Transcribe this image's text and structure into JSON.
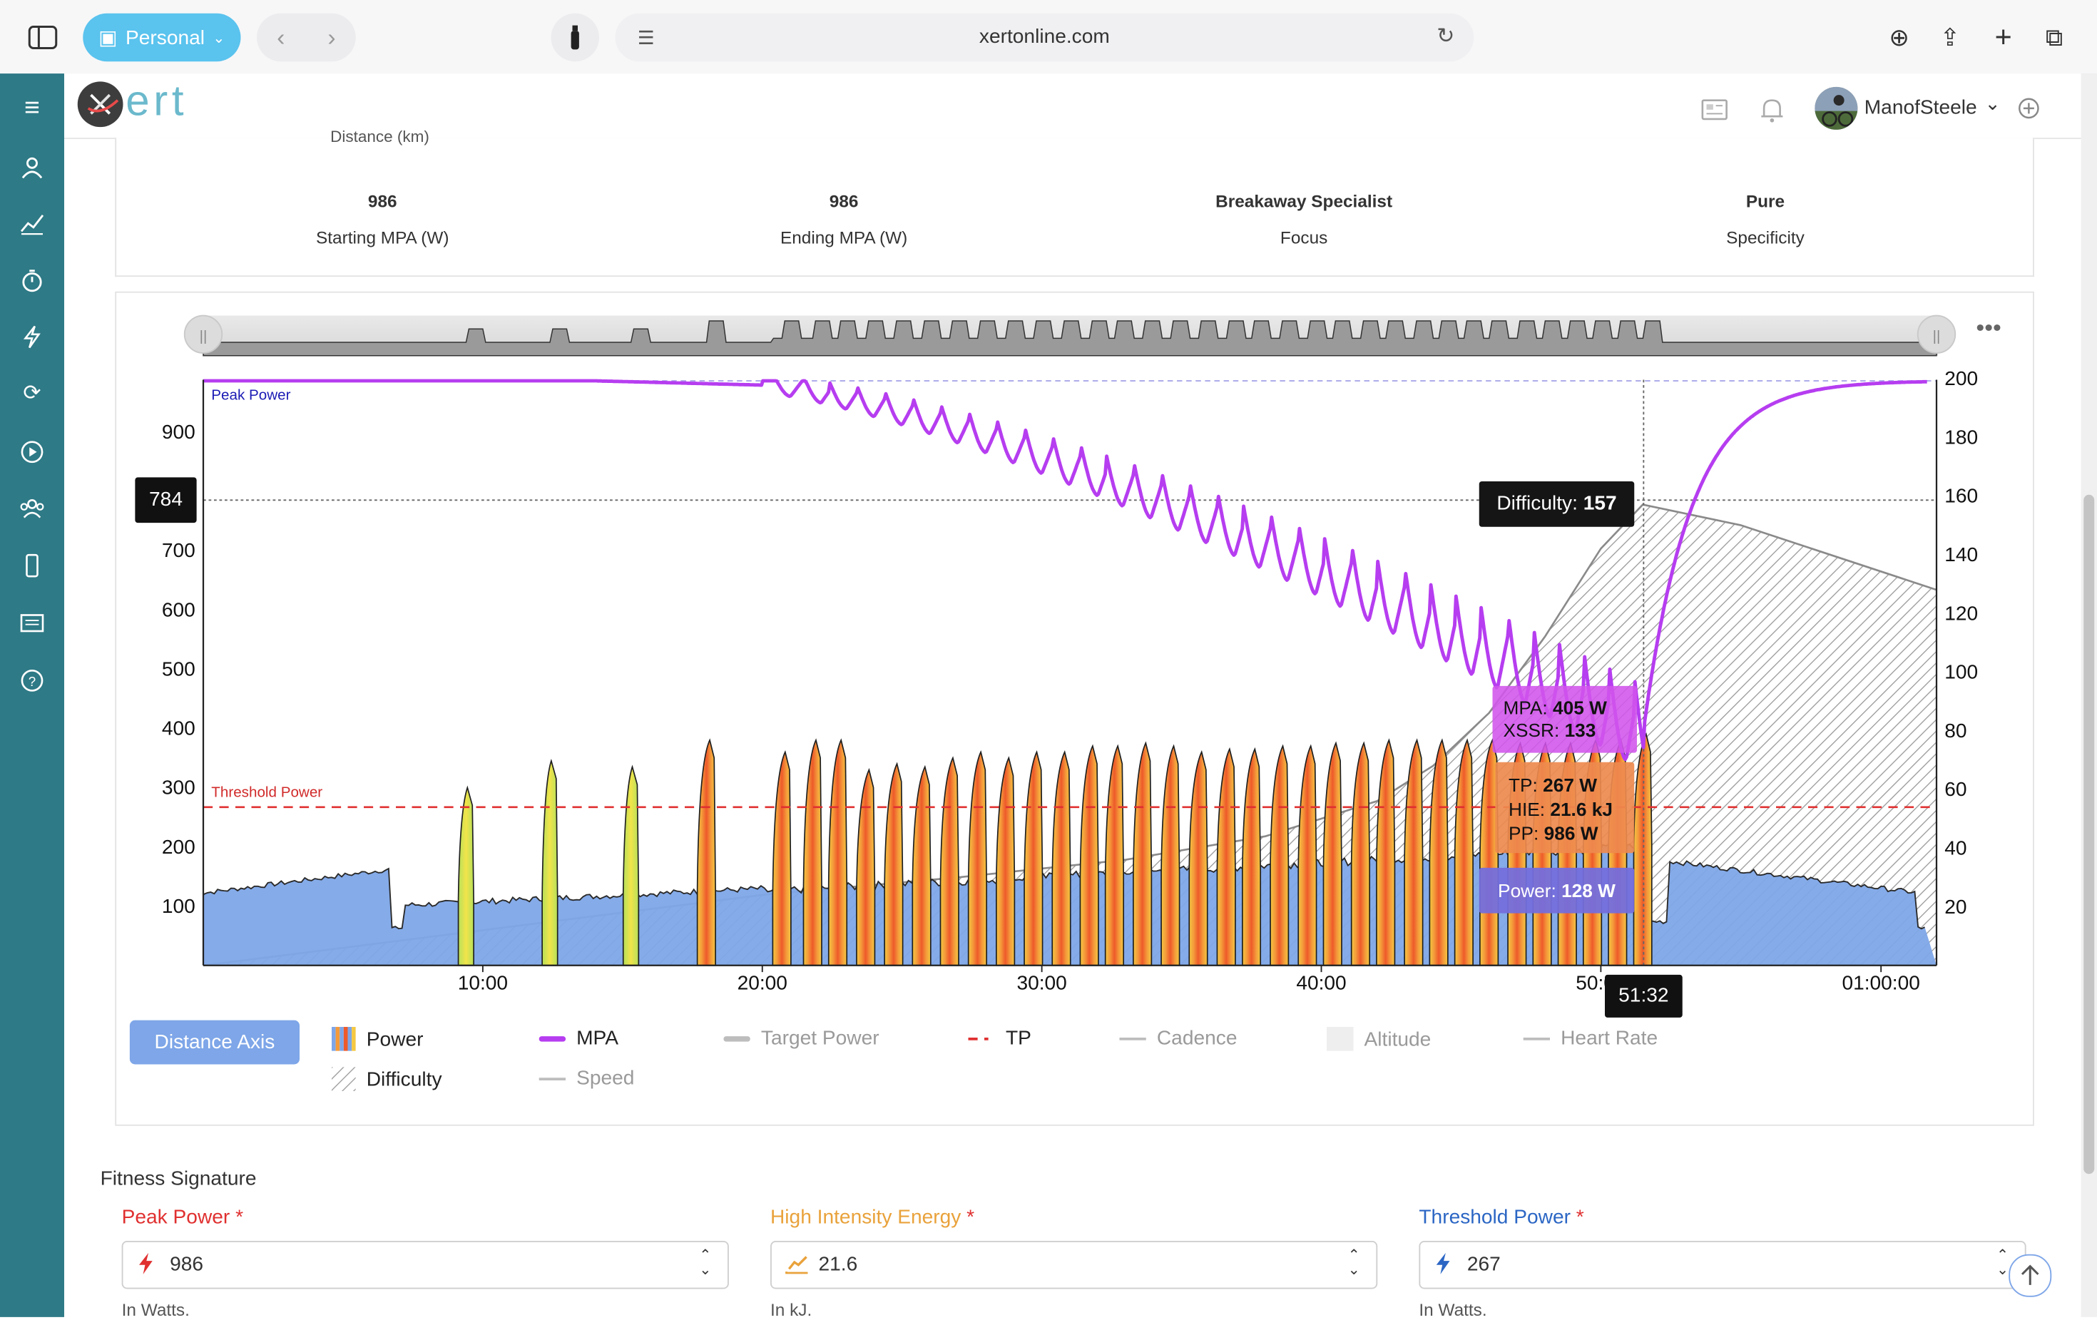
{
  "browser": {
    "profile": "Personal",
    "url": "xertonline.com"
  },
  "app": {
    "logo_text": "ert",
    "username": "ManofSteele"
  },
  "summary": {
    "cut_label": "Distance (km)",
    "stats": [
      {
        "value": "986",
        "label": "Starting MPA (W)"
      },
      {
        "value": "986",
        "label": "Ending MPA (W)"
      },
      {
        "value": "Breakaway Specialist",
        "label": "Focus"
      },
      {
        "value": "Pure",
        "label": "Specificity"
      }
    ]
  },
  "chart_labels": {
    "peak_power": "Peak Power",
    "threshold_power": "Threshold Power",
    "y_hover": "784",
    "x_hover": "51:32",
    "difficulty_tip": {
      "key": "Difficulty:",
      "val": "157"
    },
    "mpa_tip": {
      "mpa_key": "MPA:",
      "mpa_val": "405 W",
      "xssr_key": "XSSR:",
      "xssr_val": "133"
    },
    "sig_tip": {
      "tp_key": "TP:",
      "tp_val": "267 W",
      "hie_key": "HIE:",
      "hie_val": "21.6 kJ",
      "pp_key": "PP:",
      "pp_val": "986 W"
    },
    "power_tip": {
      "key": "Power:",
      "val": "128 W"
    }
  },
  "chart_data": {
    "type": "area",
    "x_ticks": [
      "10:00",
      "20:00",
      "30:00",
      "40:00",
      "50:00",
      "01:00:00"
    ],
    "x_range_minutes": [
      0,
      62
    ],
    "y_left_ticks": [
      100,
      200,
      300,
      400,
      500,
      600,
      700,
      900
    ],
    "y_left_range": [
      0,
      990
    ],
    "y_right_ticks": [
      20,
      40,
      60,
      80,
      100,
      120,
      140,
      160,
      180,
      200
    ],
    "y_right_range": [
      0,
      200
    ],
    "threshold_power": 267,
    "peak_power": 986,
    "hover": {
      "time": "51:32",
      "power_w": 128,
      "mpa_w": 405,
      "xssr": 133,
      "difficulty": 157
    },
    "series": [
      {
        "name": "Power",
        "axis": "left",
        "values_note": "intervals",
        "baseline_watts": 140,
        "intervals_minutes": [
          [
            9.4,
            300
          ],
          [
            12.4,
            345
          ],
          [
            15.3,
            335
          ],
          [
            18.0,
            380
          ],
          [
            20.7,
            360
          ],
          [
            21.8,
            380
          ],
          [
            22.7,
            380
          ],
          [
            23.7,
            330
          ],
          [
            24.7,
            340
          ],
          [
            25.7,
            335
          ],
          [
            26.7,
            350
          ],
          [
            27.7,
            360
          ],
          [
            28.7,
            350
          ],
          [
            29.7,
            360
          ],
          [
            30.7,
            360
          ],
          [
            31.7,
            370
          ],
          [
            32.6,
            370
          ],
          [
            33.6,
            375
          ],
          [
            34.6,
            370
          ],
          [
            35.6,
            360
          ],
          [
            36.6,
            365
          ],
          [
            37.5,
            365
          ],
          [
            38.5,
            370
          ],
          [
            39.5,
            370
          ],
          [
            40.4,
            375
          ],
          [
            41.4,
            375
          ],
          [
            42.3,
            380
          ],
          [
            43.3,
            380
          ],
          [
            44.2,
            380
          ],
          [
            45.1,
            380
          ],
          [
            46.0,
            380
          ],
          [
            47.0,
            375
          ],
          [
            47.9,
            375
          ],
          [
            48.8,
            375
          ],
          [
            49.7,
            380
          ],
          [
            50.6,
            380
          ],
          [
            51.5,
            390
          ]
        ]
      },
      {
        "name": "MPA",
        "axis": "left",
        "start": 986,
        "end": 986,
        "min": 405
      },
      {
        "name": "Difficulty",
        "axis": "right",
        "points": [
          [
            0,
            0
          ],
          [
            20,
            24
          ],
          [
            27,
            30
          ],
          [
            33,
            36
          ],
          [
            38,
            44
          ],
          [
            42,
            56
          ],
          [
            44,
            68
          ],
          [
            46,
            86
          ],
          [
            48,
            112
          ],
          [
            50,
            142
          ],
          [
            51.5,
            157
          ],
          [
            55,
            150
          ],
          [
            62,
            128
          ]
        ]
      }
    ],
    "legend": [
      "Power",
      "MPA",
      "Target Power",
      "TP",
      "Cadence",
      "Altitude",
      "Heart Rate",
      "Difficulty",
      "Speed"
    ],
    "legend_placement": "bottom"
  },
  "controls": {
    "distance_axis": "Distance Axis"
  },
  "fitness": {
    "title": "Fitness Signature",
    "fields": [
      {
        "label": "Peak Power",
        "value": "986",
        "hint": "In Watts.",
        "color": "#e03030"
      },
      {
        "label": "High Intensity Energy",
        "value": "21.6",
        "hint": "In kJ.",
        "color": "#e9a23b"
      },
      {
        "label": "Threshold Power",
        "value": "267",
        "hint": "In Watts.",
        "color": "#2b66c4"
      }
    ],
    "required_mark": "*"
  },
  "colors": {
    "sidebar": "#2e7a86",
    "profile_pill": "#5ac3ee",
    "mpa": "#b63df0",
    "threshold": "#e03030",
    "power_fill": "#7ea6e8"
  }
}
